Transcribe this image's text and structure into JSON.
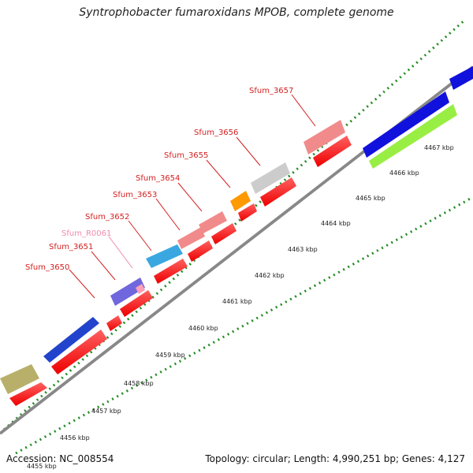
{
  "header": {
    "title": "Syntrophobacter fumaroxidans MPOB, complete genome"
  },
  "footer": {
    "accession": "Accession: NC_008554",
    "summary": "Topology: circular; Length: 4,990,251 bp; Genes: 4,127"
  },
  "scale_labels": [
    "4455 kbp",
    "4456 kbp",
    "4457 kbp",
    "4458 kbp",
    "4459 kbp",
    "4460 kbp",
    "4461 kbp",
    "4462 kbp",
    "4463 kbp",
    "4464 kbp",
    "4465 kbp",
    "4466 kbp",
    "4467 kbp"
  ],
  "gene_labels": [
    {
      "name": "Sfum_3650",
      "color": "#d42020"
    },
    {
      "name": "Sfum_3651",
      "color": "#d42020"
    },
    {
      "name": "Sfum_R0061",
      "color": "#f08ab0"
    },
    {
      "name": "Sfum_3652",
      "color": "#d42020"
    },
    {
      "name": "Sfum_3653",
      "color": "#d42020"
    },
    {
      "name": "Sfum_3654",
      "color": "#d42020"
    },
    {
      "name": "Sfum_3655",
      "color": "#d42020"
    },
    {
      "name": "Sfum_3656",
      "color": "#d42020"
    },
    {
      "name": "Sfum_3657",
      "color": "#d42020"
    }
  ],
  "colors": {
    "cds": "#ff1a1a",
    "rna": "#ff9fb8",
    "backbone": "#888888",
    "gc_skew": "#228b22",
    "gc_content": "#33aa33"
  }
}
